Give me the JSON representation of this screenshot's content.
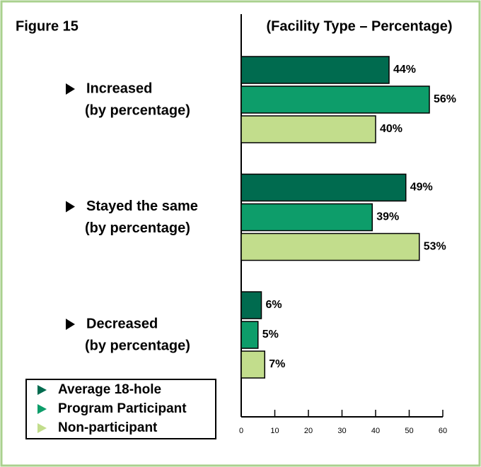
{
  "chart_data": {
    "type": "bar",
    "orientation": "horizontal",
    "title": "Figure 15",
    "subtitle": "(Facility Type – Percentage)",
    "categories": [
      [
        "Increased",
        "(by percentage)"
      ],
      [
        "Stayed the same",
        "(by percentage)"
      ],
      [
        "Decreased",
        "(by percentage)"
      ]
    ],
    "series": [
      {
        "name": "Average 18-hole",
        "color": "#006b4f",
        "values": [
          44,
          49,
          6
        ],
        "value_labels": [
          "44%",
          "49%",
          "6%"
        ]
      },
      {
        "name": "Program Participant",
        "color": "#0d9d6a",
        "values": [
          56,
          39,
          5
        ],
        "value_labels": [
          "56%",
          "39%",
          "5%"
        ]
      },
      {
        "name": "Non-participant",
        "color": "#c2dd8c",
        "values": [
          40,
          53,
          7
        ],
        "value_labels": [
          "40%",
          "53%",
          "7%"
        ]
      }
    ],
    "xlim": [
      0,
      60
    ],
    "xticks": [
      0,
      10,
      20,
      30,
      40,
      50,
      60
    ]
  }
}
